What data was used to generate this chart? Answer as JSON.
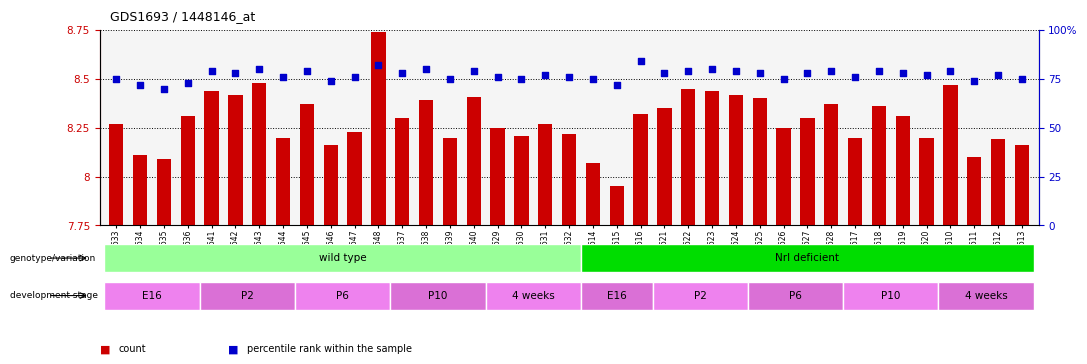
{
  "title": "GDS1693 / 1448146_at",
  "samples": [
    "GSM92633",
    "GSM92634",
    "GSM92635",
    "GSM92636",
    "GSM92641",
    "GSM92642",
    "GSM92643",
    "GSM92644",
    "GSM92645",
    "GSM92646",
    "GSM92647",
    "GSM92648",
    "GSM92637",
    "GSM92638",
    "GSM92639",
    "GSM92640",
    "GSM92629",
    "GSM92630",
    "GSM92631",
    "GSM92632",
    "GSM92614",
    "GSM92615",
    "GSM92616",
    "GSM92621",
    "GSM92622",
    "GSM92623",
    "GSM92624",
    "GSM92625",
    "GSM92626",
    "GSM92627",
    "GSM92628",
    "GSM92617",
    "GSM92618",
    "GSM92619",
    "GSM92620",
    "GSM92610",
    "GSM92611",
    "GSM92612",
    "GSM92613"
  ],
  "counts": [
    8.27,
    8.11,
    8.09,
    8.31,
    8.44,
    8.42,
    8.48,
    8.2,
    8.37,
    8.16,
    8.23,
    8.74,
    8.3,
    8.39,
    8.2,
    8.41,
    8.25,
    8.21,
    8.27,
    8.22,
    8.07,
    7.95,
    8.32,
    8.35,
    8.45,
    8.44,
    8.42,
    8.4,
    8.25,
    8.3,
    8.37,
    8.2,
    8.36,
    8.31,
    8.2,
    8.47,
    8.1,
    8.19,
    8.16
  ],
  "percentiles": [
    75,
    72,
    70,
    73,
    79,
    78,
    80,
    76,
    79,
    74,
    76,
    82,
    78,
    80,
    75,
    79,
    76,
    75,
    77,
    76,
    75,
    72,
    84,
    78,
    79,
    80,
    79,
    78,
    75,
    78,
    79,
    76,
    79,
    78,
    77,
    79,
    74,
    77,
    75
  ],
  "ymin": 7.75,
  "ymax": 8.75,
  "yticks_left": [
    7.75,
    8.0,
    8.25,
    8.5,
    8.75
  ],
  "ytick_labels_left": [
    "7.75",
    "8",
    "8.25",
    "8.5",
    "8.75"
  ],
  "yticks_right": [
    0,
    25,
    50,
    75,
    100
  ],
  "ytick_labels_right": [
    "0",
    "25",
    "50",
    "75",
    "100%"
  ],
  "bar_color": "#CC0000",
  "dot_color": "#0000CC",
  "groups_genotype": [
    {
      "label": "wild type",
      "start": 0,
      "end": 19,
      "color": "#99FF99"
    },
    {
      "label": "Nrl deficient",
      "start": 20,
      "end": 38,
      "color": "#00DD00"
    }
  ],
  "groups_stage": [
    {
      "label": "E16",
      "start": 0,
      "end": 3,
      "color": "#EE82EE"
    },
    {
      "label": "P2",
      "start": 4,
      "end": 7,
      "color": "#DA70D6"
    },
    {
      "label": "P6",
      "start": 8,
      "end": 11,
      "color": "#EE82EE"
    },
    {
      "label": "P10",
      "start": 12,
      "end": 15,
      "color": "#DA70D6"
    },
    {
      "label": "4 weeks",
      "start": 16,
      "end": 19,
      "color": "#EE82EE"
    },
    {
      "label": "E16",
      "start": 20,
      "end": 22,
      "color": "#DA70D6"
    },
    {
      "label": "P2",
      "start": 23,
      "end": 26,
      "color": "#EE82EE"
    },
    {
      "label": "P6",
      "start": 27,
      "end": 30,
      "color": "#DA70D6"
    },
    {
      "label": "P10",
      "start": 31,
      "end": 34,
      "color": "#EE82EE"
    },
    {
      "label": "4 weeks",
      "start": 35,
      "end": 38,
      "color": "#DA70D6"
    }
  ],
  "left_label_color": "#CC0000",
  "right_label_color": "#0000CC",
  "legend": [
    {
      "label": "count",
      "color": "#CC0000"
    },
    {
      "label": "percentile rank within the sample",
      "color": "#0000CC"
    }
  ]
}
